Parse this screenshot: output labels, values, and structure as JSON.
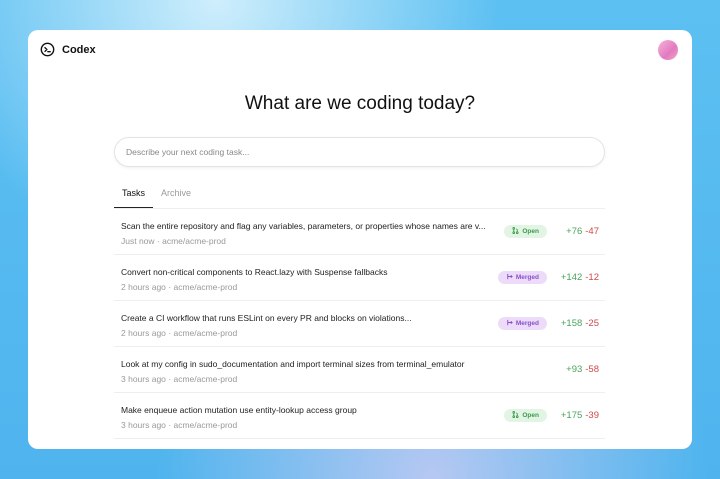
{
  "app": {
    "name": "Codex",
    "logo_icon": "terminal-circle-icon"
  },
  "header": {
    "avatar": "user-avatar"
  },
  "main": {
    "title": "What are we coding today?",
    "input_placeholder": "Describe your next coding task..."
  },
  "tabs": [
    {
      "label": "Tasks",
      "active": true
    },
    {
      "label": "Archive",
      "active": false
    }
  ],
  "tasks": [
    {
      "title": "Scan the entire repository and flag any variables, parameters, or properties whose names are v...",
      "time": "Just now",
      "repo": "acme/acme-prod",
      "status": "Open",
      "additions": "+76",
      "deletions": "-47"
    },
    {
      "title": "Convert non-critical components to React.lazy with Suspense fallbacks",
      "time": "2 hours ago",
      "repo": "acme/acme-prod",
      "status": "Merged",
      "additions": "+142",
      "deletions": "-12"
    },
    {
      "title": "Create a CI workflow that runs ESLint on every PR and blocks on violations...",
      "time": "2 hours ago",
      "repo": "acme/acme-prod",
      "status": "Merged",
      "additions": "+158",
      "deletions": "-25"
    },
    {
      "title": "Look at my config in sudo_documentation and import terminal sizes from terminal_emulator",
      "time": "3 hours ago",
      "repo": "acme/acme-prod",
      "status": "",
      "additions": "+93",
      "deletions": "-58"
    },
    {
      "title": "Make enqueue action mutation use entity-lookup access group",
      "time": "3 hours ago",
      "repo": "acme/acme-prod",
      "status": "Open",
      "additions": "+175",
      "deletions": "-39"
    }
  ],
  "colors": {
    "open": "#3c9a4a",
    "merged": "#8a4fc9",
    "additions": "#4aa35a",
    "deletions": "#d04848"
  }
}
